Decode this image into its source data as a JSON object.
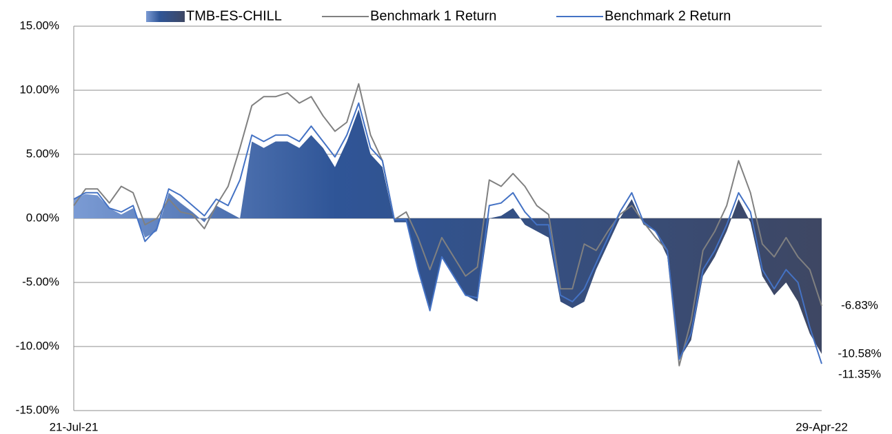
{
  "chart_data": {
    "type": "area-line",
    "categories": [
      "21-Jul-21",
      null,
      null,
      null,
      null,
      null,
      null,
      null,
      null,
      null,
      null,
      null,
      null,
      null,
      null,
      null,
      null,
      null,
      null,
      null,
      null,
      null,
      null,
      null,
      null,
      null,
      null,
      null,
      null,
      null,
      null,
      null,
      null,
      null,
      null,
      null,
      null,
      null,
      null,
      null,
      null,
      null,
      null,
      null,
      null,
      null,
      null,
      null,
      null,
      null,
      null,
      null,
      null,
      null,
      null,
      null,
      null,
      null,
      null,
      null,
      null,
      null,
      null,
      "29-Apr-22"
    ],
    "series": [
      {
        "name": "TMB-ES-CHILL",
        "color": "#34528f",
        "kind": "area",
        "values": [
          1.5,
          1.9,
          1.8,
          0.8,
          0.3,
          0.8,
          -1.5,
          -1.0,
          2.0,
          1.2,
          0.5,
          -0.3,
          1.0,
          0.5,
          0.0,
          6.0,
          5.5,
          6.0,
          6.0,
          5.5,
          6.5,
          5.5,
          4.0,
          6.0,
          8.5,
          5.0,
          4.0,
          -0.3,
          -0.3,
          -4.0,
          -7.0,
          -3.0,
          -4.5,
          -6.0,
          -6.5,
          0.0,
          0.2,
          0.8,
          -0.5,
          -1.0,
          -1.5,
          -6.5,
          -7.0,
          -6.5,
          -4.0,
          -2.0,
          0.0,
          1.5,
          -0.5,
          -1.0,
          -3.0,
          -11.0,
          -9.5,
          -4.5,
          -3.0,
          -1.0,
          1.5,
          -0.3,
          -4.5,
          -6.0,
          -5.0,
          -6.5,
          -9.0,
          -10.58
        ],
        "value_labels": [
          null,
          null,
          null,
          null,
          null,
          null,
          null,
          null,
          null,
          null,
          null,
          null,
          null,
          null,
          null,
          null,
          null,
          null,
          null,
          null,
          null,
          null,
          null,
          null,
          null,
          null,
          null,
          null,
          null,
          null,
          null,
          null,
          null,
          null,
          null,
          null,
          null,
          null,
          null,
          null,
          null,
          null,
          null,
          null,
          null,
          null,
          null,
          null,
          null,
          null,
          null,
          null,
          null,
          null,
          null,
          null,
          null,
          null,
          null,
          null,
          null,
          null,
          null,
          "-10.58%"
        ]
      },
      {
        "name": "Benchmark 1 Return",
        "color": "#808080",
        "kind": "line",
        "values": [
          1.0,
          2.3,
          2.3,
          1.2,
          2.5,
          2.0,
          -0.5,
          0.0,
          1.5,
          0.5,
          0.3,
          -0.8,
          1.0,
          2.5,
          5.5,
          8.8,
          9.5,
          9.5,
          9.8,
          9.0,
          9.5,
          8.0,
          6.8,
          7.5,
          10.5,
          6.5,
          4.5,
          -0.1,
          0.5,
          -1.5,
          -4.0,
          -1.5,
          -3.0,
          -4.5,
          -3.8,
          3.0,
          2.5,
          3.5,
          2.5,
          1.0,
          0.3,
          -5.5,
          -5.5,
          -2.0,
          -2.5,
          -1.0,
          0.3,
          1.0,
          -0.3,
          -1.5,
          -2.5,
          -11.5,
          -8.0,
          -2.5,
          -1.0,
          1.0,
          4.5,
          2.0,
          -2.0,
          -3.0,
          -1.5,
          -3.0,
          -4.0,
          -6.83
        ],
        "value_labels": [
          null,
          null,
          null,
          null,
          null,
          null,
          null,
          null,
          null,
          null,
          null,
          null,
          null,
          null,
          null,
          null,
          null,
          null,
          null,
          null,
          null,
          null,
          null,
          null,
          null,
          null,
          null,
          null,
          null,
          null,
          null,
          null,
          null,
          null,
          null,
          null,
          null,
          null,
          null,
          null,
          null,
          null,
          null,
          null,
          null,
          null,
          null,
          null,
          null,
          null,
          null,
          null,
          null,
          null,
          null,
          null,
          null,
          null,
          null,
          null,
          null,
          null,
          null,
          "-6.83%"
        ]
      },
      {
        "name": "Benchmark 2 Return",
        "color": "#4472c4",
        "kind": "line",
        "values": [
          1.5,
          2.0,
          2.0,
          0.8,
          0.5,
          1.0,
          -1.8,
          -0.8,
          2.3,
          1.8,
          1.0,
          0.2,
          1.5,
          1.0,
          3.0,
          6.5,
          6.0,
          6.5,
          6.5,
          6.0,
          7.2,
          6.0,
          4.8,
          6.5,
          9.0,
          5.5,
          4.5,
          -0.1,
          -0.1,
          -4.0,
          -7.2,
          -3.0,
          -4.5,
          -6.0,
          -6.2,
          1.0,
          1.2,
          2.0,
          0.5,
          -0.5,
          -0.5,
          -6.0,
          -6.5,
          -5.5,
          -3.5,
          -1.5,
          0.5,
          2.0,
          -0.3,
          -1.0,
          -2.5,
          -11.0,
          -9.0,
          -4.0,
          -2.5,
          -0.5,
          2.0,
          0.5,
          -4.0,
          -5.5,
          -4.0,
          -5.0,
          -8.5,
          -11.35
        ],
        "value_labels": [
          null,
          null,
          null,
          null,
          null,
          null,
          null,
          null,
          null,
          null,
          null,
          null,
          null,
          null,
          null,
          null,
          null,
          null,
          null,
          null,
          null,
          null,
          null,
          null,
          null,
          null,
          null,
          null,
          null,
          null,
          null,
          null,
          null,
          null,
          null,
          null,
          null,
          null,
          null,
          null,
          null,
          null,
          null,
          null,
          null,
          null,
          null,
          null,
          null,
          null,
          null,
          null,
          null,
          null,
          null,
          null,
          null,
          null,
          null,
          null,
          null,
          null,
          null,
          "-11.35%"
        ]
      }
    ],
    "ylim": [
      -15,
      15
    ],
    "yticks": [
      {
        "value": -15,
        "label": "-15.00%"
      },
      {
        "value": -10,
        "label": "-10.00%"
      },
      {
        "value": -5,
        "label": "-5.00%"
      },
      {
        "value": 0,
        "label": "0.00%"
      },
      {
        "value": 5,
        "label": "5.00%"
      },
      {
        "value": 10,
        "label": "10.00%"
      },
      {
        "value": 15,
        "label": "15.00%"
      }
    ],
    "grid": true,
    "legend": "top"
  }
}
